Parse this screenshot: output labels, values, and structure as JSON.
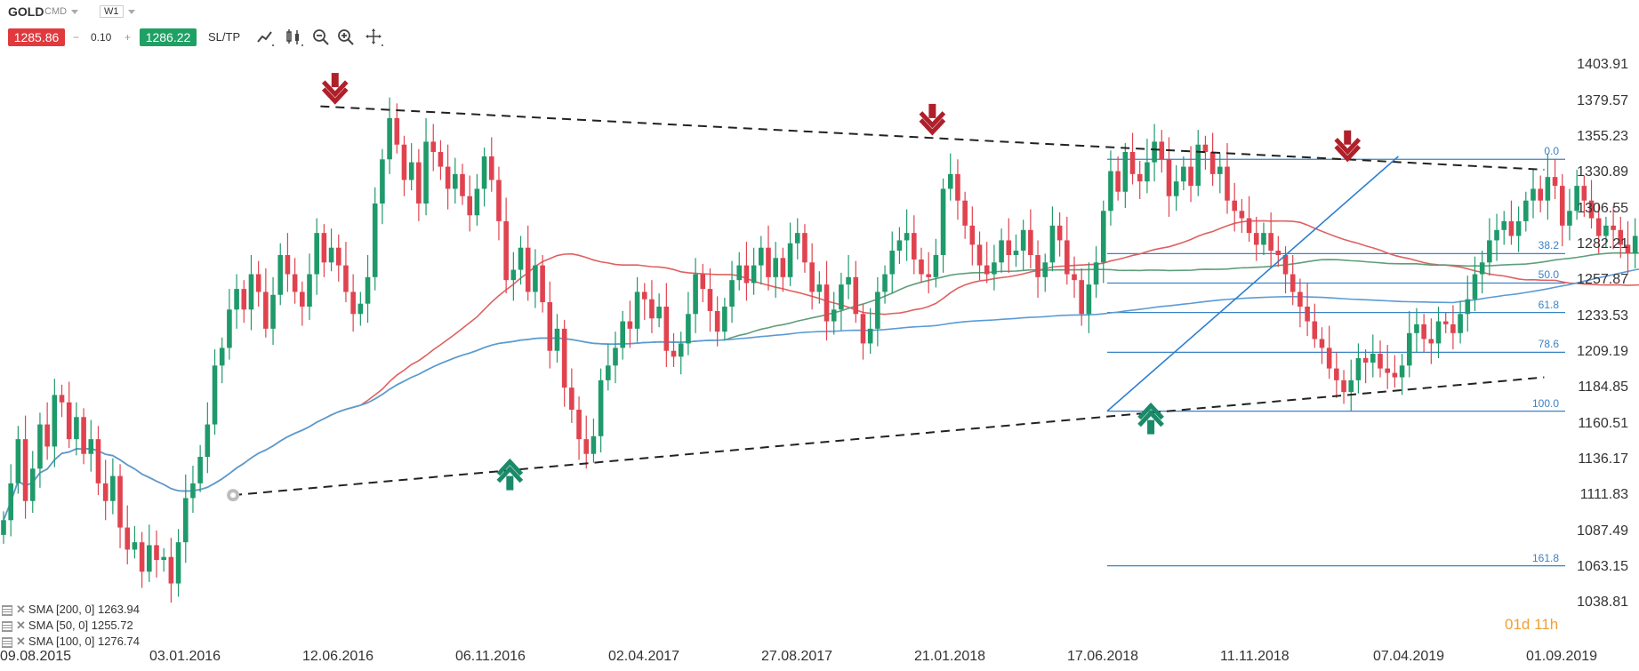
{
  "toolbar": {
    "symbol": "GOLD",
    "type": "CMD",
    "timeframe": "W1",
    "sell_price": "1285.86",
    "quantity": "0.10",
    "minus": "−",
    "plus": "+",
    "buy_price": "1286.22",
    "sltp_label": "SL/TP"
  },
  "countdown": "01d 11h",
  "indicators": [
    {
      "label": "SMA [200, 0]",
      "value": "1263.94"
    },
    {
      "label": "SMA [50, 0]",
      "value": "1255.72"
    },
    {
      "label": "SMA [100, 0]",
      "value": "1276.74"
    }
  ],
  "colors": {
    "bull": "#1f9a6b",
    "bear": "#e0434f",
    "sma200": "#5b9bd5",
    "sma50": "#e06060",
    "sma100": "#5f9e7a",
    "fib": "#3b82c4",
    "trend": "#222222",
    "arrow_down": "#b0202a",
    "arrow_up": "#1a8a68"
  },
  "chart_data": {
    "type": "candlestick",
    "instrument": "GOLD",
    "timeframe": "W1",
    "ylim": [
      1030,
      1415
    ],
    "y_ticks": [
      "1403.91",
      "1379.57",
      "1355.23",
      "1330.89",
      "1306.55",
      "1282.21",
      "1257.87",
      "1233.53",
      "1209.19",
      "1184.85",
      "1160.51",
      "1136.17",
      "1111.83",
      "1087.49",
      "1063.15",
      "1038.81"
    ],
    "x_ticks": [
      "09.08.2015",
      "03.01.2016",
      "12.06.2016",
      "06.11.2016",
      "02.04.2017",
      "27.08.2017",
      "21.01.2018",
      "17.06.2018",
      "11.11.2018",
      "07.04.2019",
      "01.09.2019"
    ],
    "fibonacci": [
      {
        "level": "0.0",
        "price": 1340
      },
      {
        "level": "38.2",
        "price": 1276
      },
      {
        "level": "50.0",
        "price": 1256
      },
      {
        "level": "61.8",
        "price": 1236
      },
      {
        "level": "78.6",
        "price": 1209
      },
      {
        "level": "100.0",
        "price": 1169
      },
      {
        "level": "161.8",
        "price": 1064
      }
    ],
    "upper_trendline": {
      "from": [
        "12.06.2016",
        1376
      ],
      "to": [
        "01.09.2019",
        1333
      ]
    },
    "lower_trendline": {
      "from": [
        "20.03.2016",
        1112
      ],
      "to": [
        "01.09.2019",
        1192
      ]
    },
    "signals": [
      {
        "type": "down",
        "date": "26.06.2016",
        "price": 1389
      },
      {
        "type": "up",
        "date": "11.12.2016",
        "price": 1125
      },
      {
        "type": "down",
        "date": "21.01.2018",
        "price": 1368
      },
      {
        "type": "up",
        "date": "19.08.2018",
        "price": 1163
      },
      {
        "type": "down",
        "date": "24.02.2019",
        "price": 1350
      }
    ],
    "candles": [
      1095,
      1120,
      1150,
      1108,
      1130,
      1160,
      1145,
      1180,
      1175,
      1150,
      1165,
      1140,
      1150,
      1120,
      1108,
      1125,
      1090,
      1075,
      1080,
      1060,
      1078,
      1068,
      1070,
      1052,
      1080,
      1110,
      1120,
      1138,
      1160,
      1200,
      1212,
      1238,
      1252,
      1238,
      1262,
      1250,
      1225,
      1248,
      1275,
      1262,
      1250,
      1240,
      1262,
      1290,
      1270,
      1280,
      1268,
      1250,
      1235,
      1242,
      1260,
      1310,
      1340,
      1368,
      1350,
      1326,
      1338,
      1310,
      1352,
      1345,
      1335,
      1320,
      1330,
      1315,
      1302,
      1320,
      1342,
      1326,
      1298,
      1258,
      1265,
      1280,
      1250,
      1268,
      1243,
      1210,
      1225,
      1185,
      1170,
      1150,
      1140,
      1152,
      1190,
      1200,
      1212,
      1230,
      1225,
      1250,
      1245,
      1232,
      1240,
      1210,
      1206,
      1215,
      1235,
      1262,
      1252,
      1237,
      1223,
      1240,
      1258,
      1268,
      1256,
      1268,
      1280,
      1260,
      1273,
      1260,
      1283,
      1290,
      1270,
      1250,
      1255,
      1230,
      1238,
      1255,
      1260,
      1235,
      1215,
      1225,
      1250,
      1262,
      1278,
      1285,
      1290,
      1272,
      1262,
      1260,
      1275,
      1320,
      1330,
      1312,
      1295,
      1282,
      1268,
      1262,
      1270,
      1285,
      1275,
      1278,
      1292,
      1275,
      1260,
      1270,
      1295,
      1285,
      1262,
      1258,
      1235,
      1255,
      1270,
      1305,
      1332,
      1318,
      1345,
      1330,
      1325,
      1338,
      1352,
      1340,
      1315,
      1325,
      1335,
      1322,
      1350,
      1345,
      1330,
      1335,
      1312,
      1305,
      1300,
      1290,
      1282,
      1290,
      1278,
      1275,
      1262,
      1250,
      1240,
      1230,
      1218,
      1212,
      1198,
      1190,
      1182,
      1190,
      1205,
      1202,
      1208,
      1198,
      1195,
      1192,
      1200,
      1222,
      1228,
      1218,
      1215,
      1230,
      1228,
      1222,
      1235,
      1245,
      1262,
      1270,
      1285,
      1292,
      1298,
      1288,
      1298,
      1312,
      1320,
      1312,
      1328,
      1322,
      1295,
      1305,
      1322,
      1312,
      1300,
      1288,
      1295,
      1292,
      1282,
      1276,
      1288,
      1282,
      1285,
      1286
    ]
  }
}
